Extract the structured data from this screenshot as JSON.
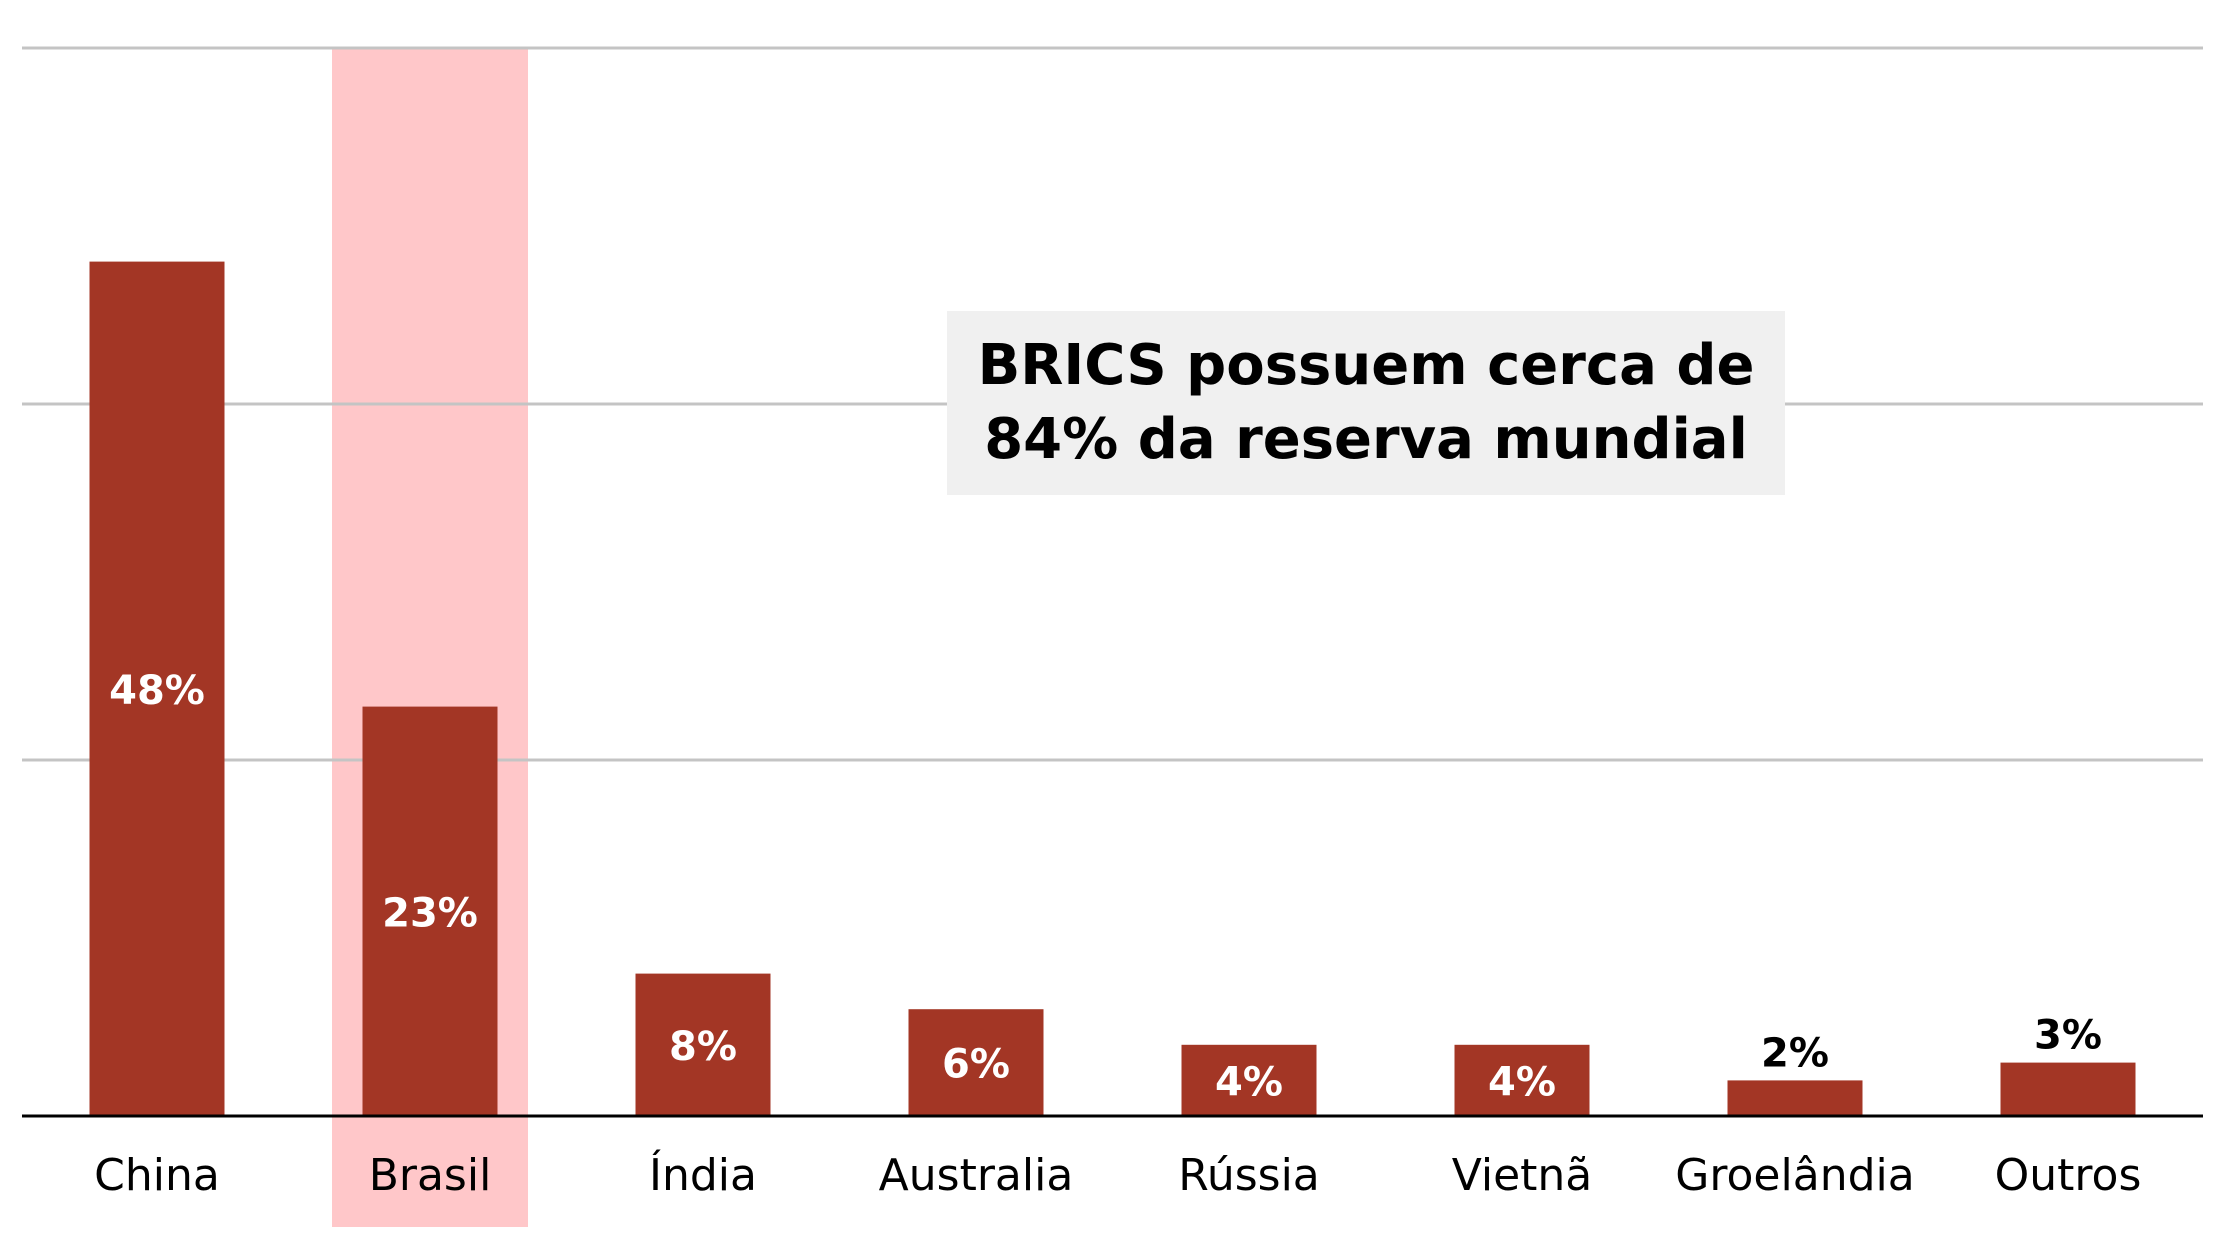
{
  "chart_data": {
    "type": "bar",
    "title": "",
    "xlabel": "",
    "ylabel": "",
    "ylim": [
      0,
      60
    ],
    "grid": true,
    "gridlines": [
      20,
      40,
      60
    ],
    "categories": [
      "China",
      "Brasil",
      "Índia",
      "Australia",
      "Rússia",
      "Vietnã",
      "Groelândia",
      "Outros"
    ],
    "values": [
      48,
      23,
      8,
      6,
      4,
      4,
      2,
      3
    ],
    "data_labels": [
      "48%",
      "23%",
      "8%",
      "6%",
      "4%",
      "4%",
      "2%",
      "3%"
    ],
    "highlighted_category": "Brasil",
    "annotation": {
      "line1": "BRICS possuem cerca de",
      "line2": "84% da reserva mundial"
    },
    "colors": {
      "bar": "#a33625",
      "highlight": "#ffc7c9",
      "grid": "#c4c4c4",
      "axis": "#000000",
      "label_inside": "#ffffff",
      "label_outside": "#000000"
    }
  }
}
